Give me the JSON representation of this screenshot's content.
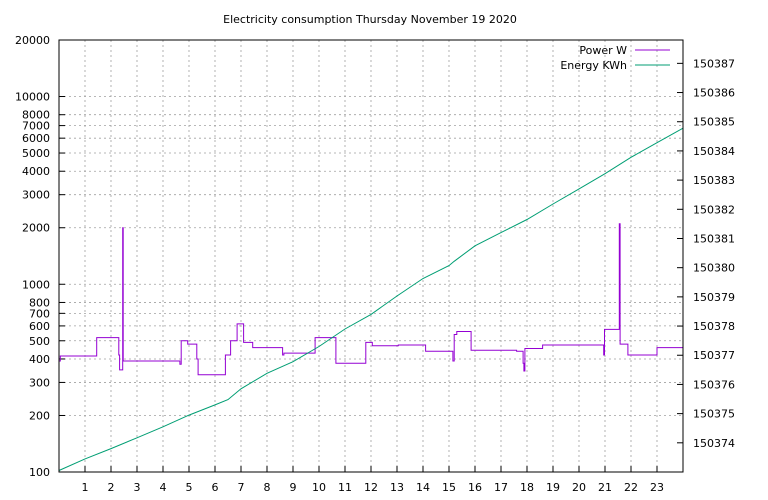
{
  "chart_data": {
    "type": "line",
    "title": "Electricity consumption Thursday November 19 2020",
    "xlabel": "",
    "ylabel": "",
    "y2label": "",
    "xlim": [
      0,
      24
    ],
    "x_ticks": [
      1,
      2,
      3,
      4,
      5,
      6,
      7,
      8,
      9,
      10,
      11,
      12,
      13,
      14,
      15,
      16,
      17,
      18,
      19,
      20,
      21,
      22,
      23
    ],
    "ylim": [
      100,
      20000
    ],
    "y_scale": "log",
    "y_ticks": [
      100,
      200,
      300,
      400,
      500,
      600,
      700,
      800,
      1000,
      2000,
      3000,
      4000,
      5000,
      6000,
      7000,
      8000,
      10000,
      20000
    ],
    "y2lim": [
      150373.0,
      150387.8
    ],
    "y2_ticks": [
      150374,
      150375,
      150376,
      150377,
      150378,
      150379,
      150380,
      150381,
      150382,
      150383,
      150384,
      150385,
      150386,
      150387
    ],
    "grid": true,
    "legend_position": "top-right",
    "series": [
      {
        "name": "Power W",
        "axis": "y1",
        "color": "#9400d3",
        "x": [
          0,
          0.05,
          0.05,
          1.45,
          1.45,
          2.3,
          2.3,
          2.33,
          2.33,
          2.45,
          2.45,
          2.47,
          2.47,
          4.65,
          4.65,
          4.7,
          4.7,
          4.95,
          4.95,
          5.3,
          5.3,
          5.35,
          5.35,
          6.4,
          6.4,
          6.6,
          6.6,
          6.85,
          6.85,
          7.1,
          7.1,
          7.45,
          7.45,
          8.6,
          8.6,
          8.65,
          8.65,
          9.85,
          9.85,
          10.65,
          10.65,
          11.8,
          11.8,
          12.05,
          12.05,
          13.05,
          13.05,
          14.1,
          14.1,
          15.15,
          15.15,
          15.2,
          15.2,
          15.3,
          15.3,
          15.85,
          15.85,
          17.6,
          17.6,
          17.85,
          17.85,
          17.88,
          17.88,
          17.92,
          17.92,
          18.6,
          18.6,
          20.95,
          20.95,
          20.98,
          20.98,
          21.55,
          21.55,
          21.58,
          21.58,
          21.88,
          21.88,
          23,
          23,
          24
        ],
        "y": [
          390,
          390,
          415,
          415,
          520,
          520,
          420,
          420,
          350,
          350,
          2000,
          2000,
          390,
          390,
          375,
          375,
          500,
          500,
          480,
          480,
          400,
          400,
          330,
          330,
          420,
          420,
          500,
          500,
          615,
          615,
          490,
          490,
          460,
          460,
          420,
          420,
          430,
          430,
          520,
          520,
          380,
          380,
          490,
          490,
          470,
          470,
          475,
          475,
          440,
          440,
          390,
          390,
          540,
          540,
          560,
          560,
          445,
          445,
          440,
          440,
          380,
          380,
          345,
          345,
          455,
          455,
          475,
          475,
          420,
          420,
          575,
          575,
          2100,
          2100,
          480,
          480,
          420,
          420,
          460,
          460
        ]
      },
      {
        "name": "Energy KWh",
        "axis": "y2",
        "color": "#009e73",
        "x": [
          0,
          1,
          2,
          3,
          4,
          5,
          6,
          6.5,
          7,
          8,
          9,
          10,
          11,
          12,
          13,
          14,
          15,
          15.2,
          16,
          17,
          18,
          19,
          20,
          21,
          22,
          23,
          24
        ],
        "y": [
          150373.05,
          150373.45,
          150373.8,
          150374.17,
          150374.55,
          150374.95,
          150375.3,
          150375.48,
          150375.85,
          150376.38,
          150376.78,
          150377.3,
          150377.9,
          150378.4,
          150379.03,
          150379.63,
          150380.07,
          150380.22,
          150380.75,
          150381.2,
          150381.65,
          150382.18,
          150382.7,
          150383.22,
          150383.78,
          150384.28,
          150384.78
        ]
      }
    ]
  }
}
